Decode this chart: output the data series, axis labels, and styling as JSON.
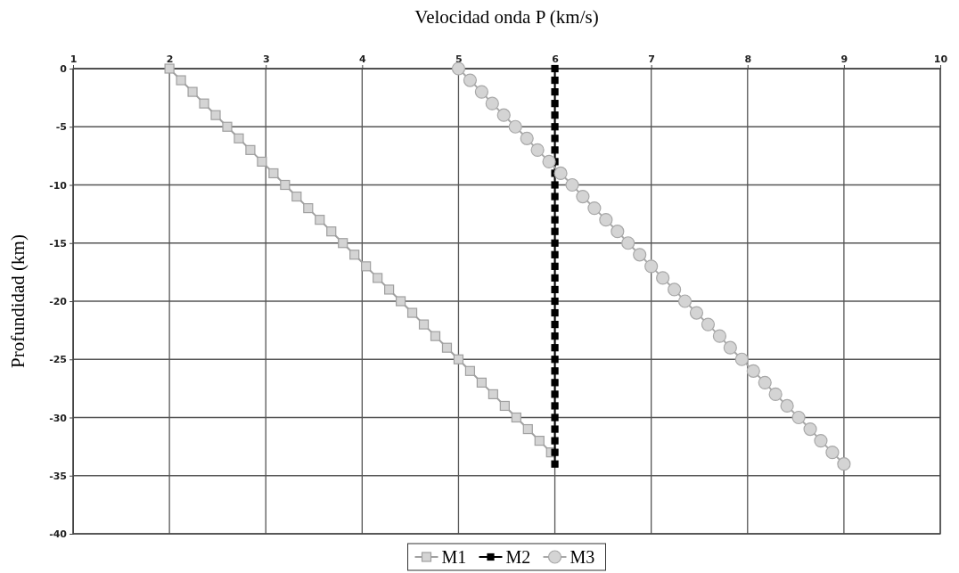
{
  "chart_data": {
    "type": "line",
    "xlabel": "Velocidad onda P (km/s)",
    "ylabel": "Profundidad (km)",
    "xlim": [
      1,
      10
    ],
    "xticks": [
      1,
      2,
      3,
      4,
      5,
      6,
      7,
      8,
      9,
      10
    ],
    "ylim": [
      -40,
      0
    ],
    "yticks": [
      0,
      -5,
      -10,
      -15,
      -20,
      -25,
      -30,
      -35,
      -40
    ],
    "grid": true,
    "legend": "bottom",
    "series": [
      {
        "name": "M1",
        "color": "#a0a0a0",
        "marker": "square",
        "x": [
          2,
          2.12,
          2.24,
          2.36,
          2.48,
          2.6,
          2.72,
          2.84,
          2.96,
          3.08,
          3.2,
          3.32,
          3.44,
          3.56,
          3.68,
          3.8,
          3.92,
          4.04,
          4.16,
          4.28,
          4.4,
          4.52,
          4.64,
          4.76,
          4.88,
          5,
          5.12,
          5.24,
          5.36,
          5.48,
          5.6,
          5.72,
          5.84,
          5.96
        ],
        "values": [
          0,
          -1,
          -2,
          -3,
          -4,
          -5,
          -6,
          -7,
          -8,
          -9,
          -10,
          -11,
          -12,
          -13,
          -14,
          -15,
          -16,
          -17,
          -18,
          -19,
          -20,
          -21,
          -22,
          -23,
          -24,
          -25,
          -26,
          -27,
          -28,
          -29,
          -30,
          -31,
          -32,
          -33
        ]
      },
      {
        "name": "M2",
        "color": "#000000",
        "marker": "square",
        "x": [
          6,
          6,
          6,
          6,
          6,
          6,
          6,
          6,
          6,
          6,
          6,
          6,
          6,
          6,
          6,
          6,
          6,
          6,
          6,
          6,
          6,
          6,
          6,
          6,
          6,
          6,
          6,
          6,
          6,
          6,
          6,
          6,
          6,
          6,
          6
        ],
        "values": [
          0,
          -1,
          -2,
          -3,
          -4,
          -5,
          -6,
          -7,
          -8,
          -9,
          -10,
          -11,
          -12,
          -13,
          -14,
          -15,
          -16,
          -17,
          -18,
          -19,
          -20,
          -21,
          -22,
          -23,
          -24,
          -25,
          -26,
          -27,
          -28,
          -29,
          -30,
          -31,
          -32,
          -33,
          -34
        ]
      },
      {
        "name": "M3",
        "color": "#a8a8a8",
        "marker": "circle",
        "x": [
          5,
          5.12,
          5.24,
          5.35,
          5.47,
          5.59,
          5.71,
          5.82,
          5.94,
          6.06,
          6.18,
          6.29,
          6.41,
          6.53,
          6.65,
          6.76,
          6.88,
          7,
          7.12,
          7.24,
          7.35,
          7.47,
          7.59,
          7.71,
          7.82,
          7.94,
          8.06,
          8.18,
          8.29,
          8.41,
          8.53,
          8.65,
          8.76,
          8.88,
          9
        ],
        "values": [
          0,
          -1,
          -2,
          -3,
          -4,
          -5,
          -6,
          -7,
          -8,
          -9,
          -10,
          -11,
          -12,
          -13,
          -14,
          -15,
          -16,
          -17,
          -18,
          -19,
          -20,
          -21,
          -22,
          -23,
          -24,
          -25,
          -26,
          -27,
          -28,
          -29,
          -30,
          -31,
          -32,
          -33,
          -34
        ]
      }
    ]
  }
}
